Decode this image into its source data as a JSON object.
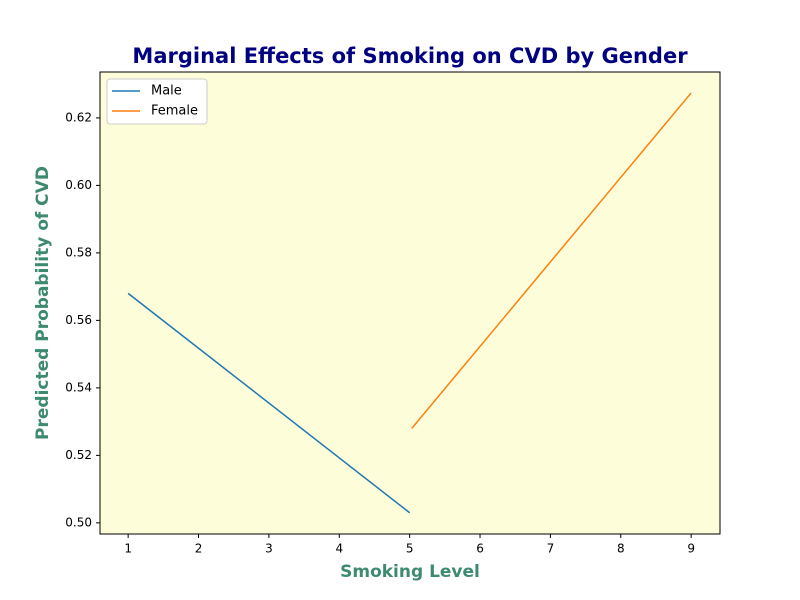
{
  "chart_data": {
    "type": "line",
    "title": "Marginal Effects of Smoking on CVD by Gender",
    "xlabel": "Smoking Level",
    "ylabel": "Predicted Probability of CVD",
    "series": [
      {
        "name": "Male",
        "color": "#1f77b4",
        "x": [
          1,
          5
        ],
        "values": [
          0.568,
          0.503
        ]
      },
      {
        "name": "Female",
        "color": "#ff7f0e",
        "x": [
          5.03,
          9
        ],
        "values": [
          0.528,
          0.6274
        ]
      }
    ],
    "xlim": [
      0.6,
      9.41
    ],
    "xticks": [
      1,
      2,
      3,
      4,
      5,
      6,
      7,
      8,
      9
    ],
    "ylim": [
      0.4967,
      0.6336
    ],
    "yticks": [
      {
        "value": 0.5,
        "label": "0.50"
      },
      {
        "value": 0.52,
        "label": "0.52"
      },
      {
        "value": 0.54,
        "label": "0.54"
      },
      {
        "value": 0.56,
        "label": "0.56"
      },
      {
        "value": 0.58,
        "label": "0.58"
      },
      {
        "value": 0.6,
        "label": "0.60"
      },
      {
        "value": 0.62,
        "label": "0.62"
      }
    ],
    "background": "#fdfdda",
    "legend": "upper-left"
  }
}
